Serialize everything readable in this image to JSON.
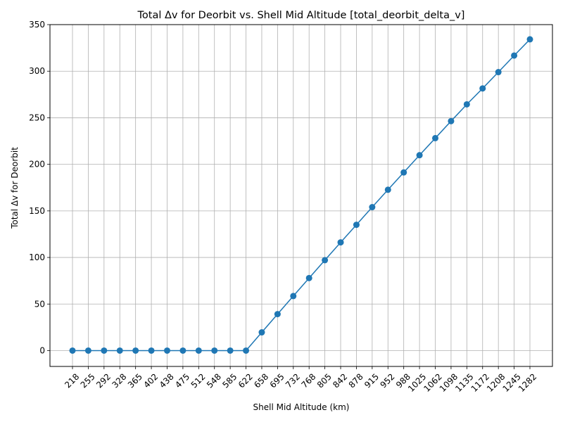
{
  "chart_data": {
    "type": "line",
    "title": "Total Δv for Deorbit vs. Shell Mid Altitude [total_deorbit_delta_v]",
    "xlabel": "Shell Mid Altitude (km)",
    "ylabel": "Total Δv for Deorbit",
    "categories": [
      "218",
      "255",
      "292",
      "328",
      "365",
      "402",
      "438",
      "475",
      "512",
      "548",
      "585",
      "622",
      "658",
      "695",
      "732",
      "768",
      "805",
      "842",
      "878",
      "915",
      "952",
      "988",
      "1025",
      "1062",
      "1098",
      "1135",
      "1172",
      "1208",
      "1245",
      "1282"
    ],
    "values": [
      0,
      0,
      0,
      0,
      0,
      0,
      0,
      0,
      0,
      0,
      0,
      0,
      19.6,
      39.2,
      58.6,
      77.9,
      97.1,
      116.2,
      135.1,
      154.0,
      172.7,
      191.3,
      209.8,
      228.1,
      246.4,
      264.4,
      281.5,
      299.0,
      316.8,
      334.2
    ],
    "ylim": [
      -17,
      350
    ],
    "yticks": [
      0,
      50,
      100,
      150,
      200,
      250,
      300,
      350
    ],
    "grid": true,
    "marker": "circle",
    "line_color": "#1f77b4"
  }
}
